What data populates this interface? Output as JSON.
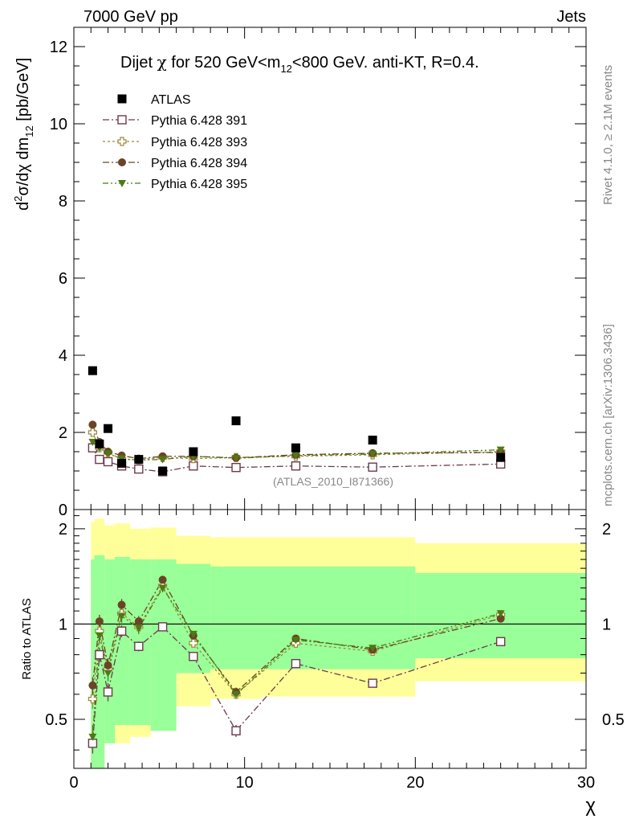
{
  "header": {
    "energy_label": "7000 GeV pp",
    "category_label": "Jets",
    "rivet_label": "Rivet 4.1.0, ≥ 2.1M events",
    "site_label": "mcplots.cern.ch [arXiv:1306.3436]",
    "analysis_label": "(ATLAS_2010_I871366)"
  },
  "chart_data": [
    {
      "type": "scatter",
      "title": "Dijet χ for 520 GeV<m₁₂<800 GeV.  anti-KT, R=0.4.",
      "title_parts": {
        "a": "Dijet ",
        "chi": "χ",
        "b": " for 520 GeV<m",
        "sub": "12",
        "c": "<800 GeV.  anti-KT, R=0.4."
      },
      "xlabel": "χ",
      "ylabel": "d²σ/dχ dm₁₂ [pb/GeV]",
      "ylabel_parts": {
        "a": "d",
        "sup": "2",
        "b": "σ/dχ dm",
        "sub": "12",
        "c": " [pb/GeV]"
      },
      "xlim": [
        0,
        30
      ],
      "ylim": [
        0,
        12.5
      ],
      "x_ticks": [
        0,
        10,
        20,
        30
      ],
      "y_ticks": [
        0,
        2,
        4,
        6,
        8,
        10,
        12
      ],
      "y_tick_labels": [
        "0",
        "2",
        "4",
        "6",
        "8",
        "10",
        "12"
      ],
      "legend_position": "top-left",
      "x": [
        1.1,
        1.5,
        2.0,
        2.8,
        3.8,
        5.2,
        7.0,
        9.5,
        13.0,
        17.5,
        25.0
      ],
      "series": [
        {
          "name": "ATLAS",
          "color": "#000000",
          "marker": "filled-square",
          "values": [
            3.6,
            1.7,
            2.1,
            1.2,
            1.3,
            1.0,
            1.5,
            2.3,
            1.6,
            1.8,
            1.35
          ]
        },
        {
          "name": "Pythia 6.428 391",
          "color": "#6b3a4d",
          "marker": "open-square",
          "dash": "dashdot",
          "values": [
            1.6,
            1.3,
            1.24,
            1.13,
            1.05,
            0.98,
            1.13,
            1.09,
            1.13,
            1.1,
            1.18
          ]
        },
        {
          "name": "Pythia 6.428 393",
          "color": "#9c8a3c",
          "marker": "open-cross",
          "dash": "dot",
          "values": [
            2.0,
            1.6,
            1.48,
            1.3,
            1.29,
            1.35,
            1.32,
            1.35,
            1.38,
            1.42,
            1.5
          ]
        },
        {
          "name": "Pythia 6.428 394",
          "color": "#6b4426",
          "marker": "filled-circle",
          "dash": "dashdot",
          "values": [
            2.2,
            1.75,
            1.5,
            1.4,
            1.32,
            1.38,
            1.38,
            1.34,
            1.42,
            1.46,
            1.48
          ]
        },
        {
          "name": "Pythia 6.428 395",
          "color": "#4d7a12",
          "marker": "filled-triangle-down",
          "dash": "dashdotdot",
          "values": [
            1.75,
            1.6,
            1.45,
            1.32,
            1.28,
            1.3,
            1.38,
            1.33,
            1.4,
            1.44,
            1.55
          ]
        }
      ]
    },
    {
      "type": "scatter",
      "title": "",
      "xlabel": "χ",
      "ylabel": "Ratio to ATLAS",
      "xlim": [
        0,
        30
      ],
      "ylim": [
        0.35,
        2.3
      ],
      "y_scale": "log",
      "x_ticks": [
        0,
        10,
        20,
        30
      ],
      "x_tick_labels": [
        "0",
        "10",
        "20",
        "30"
      ],
      "y_ticks": [
        0.5,
        1,
        2
      ],
      "y_tick_labels": [
        "0.5",
        "1",
        "2"
      ],
      "reference_line": 1,
      "bands": [
        {
          "x0": 1.0,
          "x1": 1.2,
          "yellow": [
            0.3,
            2.1
          ],
          "green": [
            0.3,
            1.6
          ]
        },
        {
          "x0": 1.2,
          "x1": 1.8,
          "yellow": [
            0.35,
            2.15
          ],
          "green": [
            0.35,
            1.65
          ]
        },
        {
          "x0": 1.8,
          "x1": 2.4,
          "yellow": [
            0.42,
            2.05
          ],
          "green": [
            0.42,
            1.6
          ]
        },
        {
          "x0": 2.4,
          "x1": 3.3,
          "yellow": [
            0.42,
            2.08
          ],
          "green": [
            0.48,
            1.63
          ]
        },
        {
          "x0": 3.3,
          "x1": 4.5,
          "yellow": [
            0.44,
            2.0
          ],
          "green": [
            0.48,
            1.6
          ]
        },
        {
          "x0": 4.5,
          "x1": 6.0,
          "yellow": [
            0.46,
            2.02
          ],
          "green": [
            0.46,
            1.6
          ]
        },
        {
          "x0": 6.0,
          "x1": 8.0,
          "yellow": [
            0.55,
            1.9
          ],
          "green": [
            0.7,
            1.55
          ]
        },
        {
          "x0": 8.0,
          "x1": 11.0,
          "yellow": [
            0.58,
            1.88
          ],
          "green": [
            0.72,
            1.52
          ]
        },
        {
          "x0": 11.0,
          "x1": 15.0,
          "yellow": [
            0.59,
            1.88
          ],
          "green": [
            0.72,
            1.52
          ]
        },
        {
          "x0": 15.0,
          "x1": 20.0,
          "yellow": [
            0.59,
            1.88
          ],
          "green": [
            0.72,
            1.52
          ]
        },
        {
          "x0": 20.0,
          "x1": 30.0,
          "yellow": [
            0.66,
            1.8
          ],
          "green": [
            0.78,
            1.45
          ]
        }
      ],
      "x": [
        1.1,
        1.5,
        2.0,
        2.8,
        3.8,
        5.2,
        7.0,
        9.5,
        13.0,
        17.5,
        25.0
      ],
      "series": [
        {
          "name": "Pythia 6.428 391",
          "color": "#6b3a4d",
          "marker": "open-square",
          "dash": "dashdot",
          "values": [
            0.42,
            0.8,
            0.61,
            0.95,
            0.85,
            0.98,
            0.79,
            0.46,
            0.75,
            0.65,
            0.88
          ],
          "errors": [
            0.03,
            0.04,
            0.04,
            0.04,
            0.03,
            0.03,
            0.02,
            0.02,
            0.01,
            0.01,
            0.01
          ]
        },
        {
          "name": "Pythia 6.428 393",
          "color": "#9c8a3c",
          "marker": "open-cross",
          "dash": "dot",
          "values": [
            0.58,
            0.95,
            0.72,
            1.08,
            0.98,
            1.32,
            0.87,
            0.6,
            0.87,
            0.82,
            1.07
          ],
          "errors": [
            0.04,
            0.05,
            0.04,
            0.05,
            0.04,
            0.04,
            0.02,
            0.02,
            0.01,
            0.01,
            0.01
          ]
        },
        {
          "name": "Pythia 6.428 394",
          "color": "#6b4426",
          "marker": "filled-circle",
          "dash": "dashdot",
          "values": [
            0.64,
            1.02,
            0.74,
            1.15,
            1.02,
            1.38,
            0.92,
            0.61,
            0.9,
            0.83,
            1.04
          ],
          "errors": [
            0.04,
            0.05,
            0.04,
            0.05,
            0.04,
            0.04,
            0.02,
            0.02,
            0.01,
            0.01,
            0.01
          ]
        },
        {
          "name": "Pythia 6.428 395",
          "color": "#4d7a12",
          "marker": "filled-triangle-down",
          "dash": "dashdotdot",
          "values": [
            0.44,
            0.92,
            0.7,
            1.06,
            0.97,
            1.3,
            0.93,
            0.6,
            0.89,
            0.84,
            1.08
          ],
          "errors": [
            0.04,
            0.05,
            0.04,
            0.05,
            0.04,
            0.04,
            0.02,
            0.02,
            0.01,
            0.01,
            0.01
          ]
        }
      ]
    }
  ]
}
